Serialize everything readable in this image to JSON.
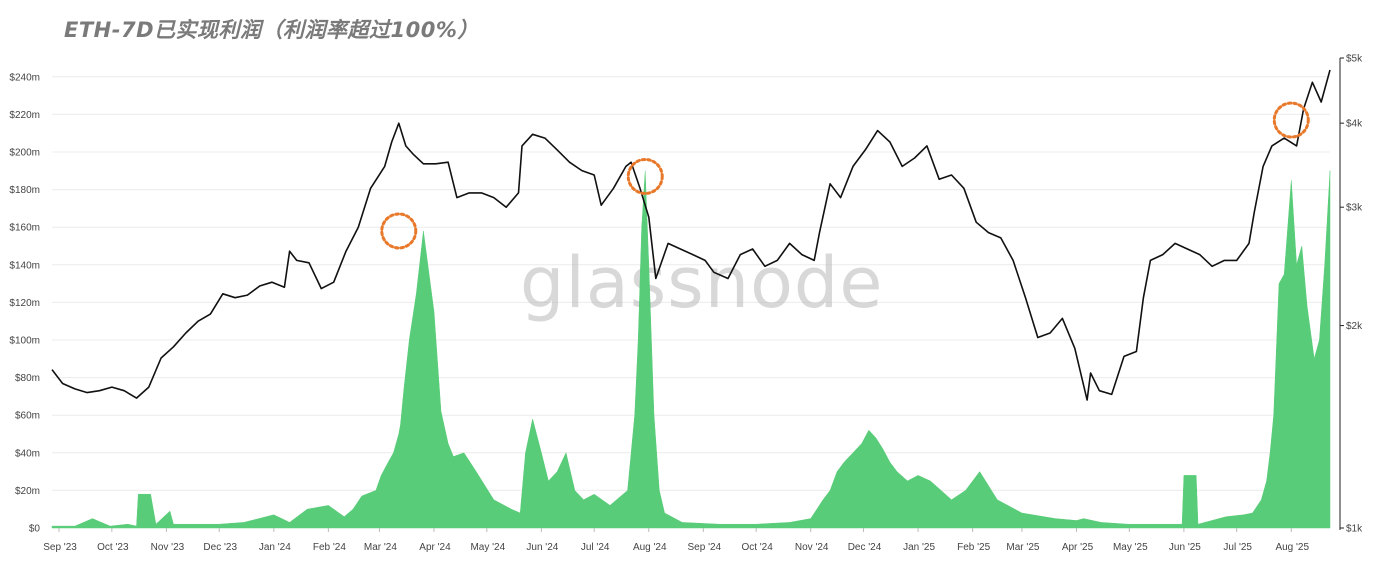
{
  "title": "ETH-7D已实现利润（利润率超过100%）",
  "watermark": "glassnode",
  "colors": {
    "profit_area": "#58cc78",
    "price_line": "#111111",
    "highlight_circle": "#e8782a"
  },
  "chart_data": {
    "type": "area",
    "title": "ETH-7D已实现利润（利润率超过100%）",
    "x_labels": [
      "Sep '23",
      "Oct '23",
      "Nov '23",
      "Dec '23",
      "Jan '24",
      "Feb '24",
      "Mar '24",
      "Apr '24",
      "May '24",
      "Jun '24",
      "Jul '24",
      "Aug '24",
      "Sep '24",
      "Oct '24",
      "Nov '24",
      "Dec '24",
      "Jan '25",
      "Feb '25",
      "Mar '25",
      "Apr '25",
      "May '25",
      "Jun '25",
      "Jul '25",
      "Aug '25"
    ],
    "x_range": [
      "2023-08-28",
      "2025-08-23"
    ],
    "y_left": {
      "ticks": [
        "$0",
        "$20m",
        "$40m",
        "$60m",
        "$80m",
        "$100m",
        "$120m",
        "$140m",
        "$160m",
        "$180m",
        "$200m",
        "$220m",
        "$240m"
      ],
      "ylim": [
        0,
        250
      ],
      "unit": "$m"
    },
    "y_right": {
      "ticks": [
        "$1k",
        "$2k",
        "$3k",
        "$4k",
        "$5k"
      ],
      "scale": "log",
      "ylim": [
        1000,
        5000
      ]
    },
    "grid": true,
    "series": [
      {
        "chart": "area",
        "axis": "left",
        "x": [
          "2023-08-28",
          "2023-09-10",
          "2023-09-20",
          "2023-09-30",
          "2023-10-10",
          "2023-10-15",
          "2023-10-16",
          "2023-10-23",
          "2023-10-26",
          "2023-11-03",
          "2023-11-05",
          "2023-11-15",
          "2023-12-01",
          "2023-12-15",
          "2024-01-01",
          "2024-01-10",
          "2024-01-20",
          "2024-02-01",
          "2024-02-10",
          "2024-02-15",
          "2024-02-20",
          "2024-02-28",
          "2024-03-02",
          "2024-03-06",
          "2024-03-09",
          "2024-03-12",
          "2024-03-13",
          "2024-03-15",
          "2024-03-18",
          "2024-03-22",
          "2024-03-26",
          "2024-04-01",
          "2024-04-05",
          "2024-04-09",
          "2024-04-12",
          "2024-04-18",
          "2024-04-25",
          "2024-05-05",
          "2024-05-15",
          "2024-05-20",
          "2024-05-23",
          "2024-05-27",
          "2024-06-01",
          "2024-06-05",
          "2024-06-10",
          "2024-06-15",
          "2024-06-20",
          "2024-06-25",
          "2024-07-01",
          "2024-07-10",
          "2024-07-20",
          "2024-07-24",
          "2024-07-26",
          "2024-07-28",
          "2024-07-30",
          "2024-08-01",
          "2024-08-04",
          "2024-08-07",
          "2024-08-10",
          "2024-08-20",
          "2024-09-10",
          "2024-10-01",
          "2024-10-20",
          "2024-11-01",
          "2024-11-08",
          "2024-11-12",
          "2024-11-16",
          "2024-11-20",
          "2024-11-25",
          "2024-11-30",
          "2024-12-04",
          "2024-12-08",
          "2024-12-12",
          "2024-12-16",
          "2024-12-20",
          "2024-12-26",
          "2025-01-01",
          "2025-01-08",
          "2025-01-14",
          "2025-01-20",
          "2025-01-28",
          "2025-02-05",
          "2025-02-15",
          "2025-03-01",
          "2025-03-20",
          "2025-04-01",
          "2025-04-05",
          "2025-04-15",
          "2025-04-30",
          "2025-05-15",
          "2025-05-31",
          "2025-06-01",
          "2025-06-08",
          "2025-06-09",
          "2025-06-25",
          "2025-07-05",
          "2025-07-10",
          "2025-07-15",
          "2025-07-18",
          "2025-07-20",
          "2025-07-22",
          "2025-07-25",
          "2025-07-28",
          "2025-08-01",
          "2025-08-04",
          "2025-08-07",
          "2025-08-10",
          "2025-08-14",
          "2025-08-17",
          "2025-08-20",
          "2025-08-23"
        ],
        "values": [
          1,
          1,
          5,
          1,
          2,
          1,
          18,
          18,
          2,
          9,
          2,
          2,
          2,
          3,
          7,
          3,
          10,
          12,
          6,
          10,
          17,
          20,
          28,
          35,
          40,
          50,
          55,
          75,
          100,
          125,
          158,
          115,
          62,
          45,
          38,
          40,
          30,
          15,
          10,
          8,
          40,
          58,
          40,
          25,
          30,
          40,
          20,
          15,
          18,
          12,
          20,
          60,
          100,
          160,
          190,
          140,
          60,
          20,
          8,
          3,
          2,
          2,
          3,
          5,
          15,
          20,
          30,
          35,
          40,
          45,
          52,
          48,
          42,
          35,
          30,
          25,
          28,
          25,
          20,
          15,
          20,
          30,
          15,
          8,
          5,
          4,
          5,
          3,
          2,
          2,
          2,
          28,
          28,
          2,
          6,
          7,
          8,
          15,
          25,
          40,
          60,
          130,
          135,
          185,
          140,
          150,
          118,
          90,
          100,
          140,
          190
        ]
      },
      {
        "chart": "line",
        "axis": "right",
        "x": [
          "2023-08-28",
          "2023-09-03",
          "2023-09-10",
          "2023-09-17",
          "2023-09-24",
          "2023-10-01",
          "2023-10-08",
          "2023-10-15",
          "2023-10-22",
          "2023-10-29",
          "2023-11-05",
          "2023-11-12",
          "2023-11-19",
          "2023-11-26",
          "2023-12-03",
          "2023-12-10",
          "2023-12-17",
          "2023-12-24",
          "2023-12-31",
          "2024-01-07",
          "2024-01-10",
          "2024-01-14",
          "2024-01-21",
          "2024-01-28",
          "2024-02-04",
          "2024-02-11",
          "2024-02-18",
          "2024-02-25",
          "2024-03-04",
          "2024-03-08",
          "2024-03-12",
          "2024-03-16",
          "2024-03-20",
          "2024-03-26",
          "2024-04-02",
          "2024-04-09",
          "2024-04-14",
          "2024-04-21",
          "2024-04-28",
          "2024-05-05",
          "2024-05-12",
          "2024-05-19",
          "2024-05-21",
          "2024-05-27",
          "2024-06-03",
          "2024-06-10",
          "2024-06-17",
          "2024-06-24",
          "2024-07-01",
          "2024-07-05",
          "2024-07-12",
          "2024-07-19",
          "2024-07-22",
          "2024-07-27",
          "2024-08-01",
          "2024-08-05",
          "2024-08-12",
          "2024-08-19",
          "2024-08-26",
          "2024-09-02",
          "2024-09-07",
          "2024-09-15",
          "2024-09-22",
          "2024-09-29",
          "2024-10-06",
          "2024-10-13",
          "2024-10-20",
          "2024-10-27",
          "2024-11-03",
          "2024-11-06",
          "2024-11-12",
          "2024-11-18",
          "2024-11-25",
          "2024-12-02",
          "2024-12-09",
          "2024-12-16",
          "2024-12-23",
          "2024-12-30",
          "2025-01-06",
          "2025-01-13",
          "2025-01-20",
          "2025-01-27",
          "2025-02-03",
          "2025-02-10",
          "2025-02-17",
          "2025-02-24",
          "2025-03-03",
          "2025-03-10",
          "2025-03-17",
          "2025-03-24",
          "2025-03-31",
          "2025-04-07",
          "2025-04-09",
          "2025-04-14",
          "2025-04-21",
          "2025-04-28",
          "2025-05-05",
          "2025-05-09",
          "2025-05-13",
          "2025-05-20",
          "2025-05-27",
          "2025-06-03",
          "2025-06-10",
          "2025-06-17",
          "2025-06-24",
          "2025-07-01",
          "2025-07-08",
          "2025-07-11",
          "2025-07-16",
          "2025-07-21",
          "2025-07-28",
          "2025-08-04",
          "2025-08-08",
          "2025-08-13",
          "2025-08-18",
          "2025-08-23"
        ],
        "values": [
          1720,
          1640,
          1610,
          1590,
          1600,
          1620,
          1600,
          1560,
          1620,
          1790,
          1860,
          1950,
          2030,
          2080,
          2230,
          2200,
          2220,
          2290,
          2320,
          2280,
          2580,
          2500,
          2480,
          2270,
          2320,
          2580,
          2800,
          3200,
          3450,
          3750,
          4000,
          3700,
          3600,
          3480,
          3480,
          3500,
          3100,
          3150,
          3150,
          3100,
          3000,
          3150,
          3700,
          3850,
          3800,
          3650,
          3500,
          3400,
          3350,
          3020,
          3200,
          3450,
          3500,
          3200,
          2900,
          2350,
          2650,
          2600,
          2550,
          2500,
          2400,
          2350,
          2550,
          2600,
          2450,
          2500,
          2650,
          2550,
          2500,
          2750,
          3250,
          3100,
          3450,
          3650,
          3900,
          3750,
          3450,
          3550,
          3700,
          3300,
          3350,
          3200,
          2850,
          2750,
          2700,
          2500,
          2200,
          1920,
          1950,
          2050,
          1850,
          1550,
          1700,
          1600,
          1580,
          1800,
          1830,
          2200,
          2500,
          2550,
          2650,
          2600,
          2550,
          2450,
          2500,
          2500,
          2650,
          2950,
          3450,
          3700,
          3800,
          3700,
          4200,
          4600,
          4300,
          4800
        ]
      }
    ],
    "annotations": [
      {
        "type": "circle",
        "x": "2024-03-12",
        "y": 158,
        "axis": "left"
      },
      {
        "type": "circle",
        "x": "2024-07-30",
        "y": 187,
        "axis": "left"
      },
      {
        "type": "circle",
        "x": "2025-08-01",
        "y": 217,
        "axis": "left"
      }
    ]
  }
}
